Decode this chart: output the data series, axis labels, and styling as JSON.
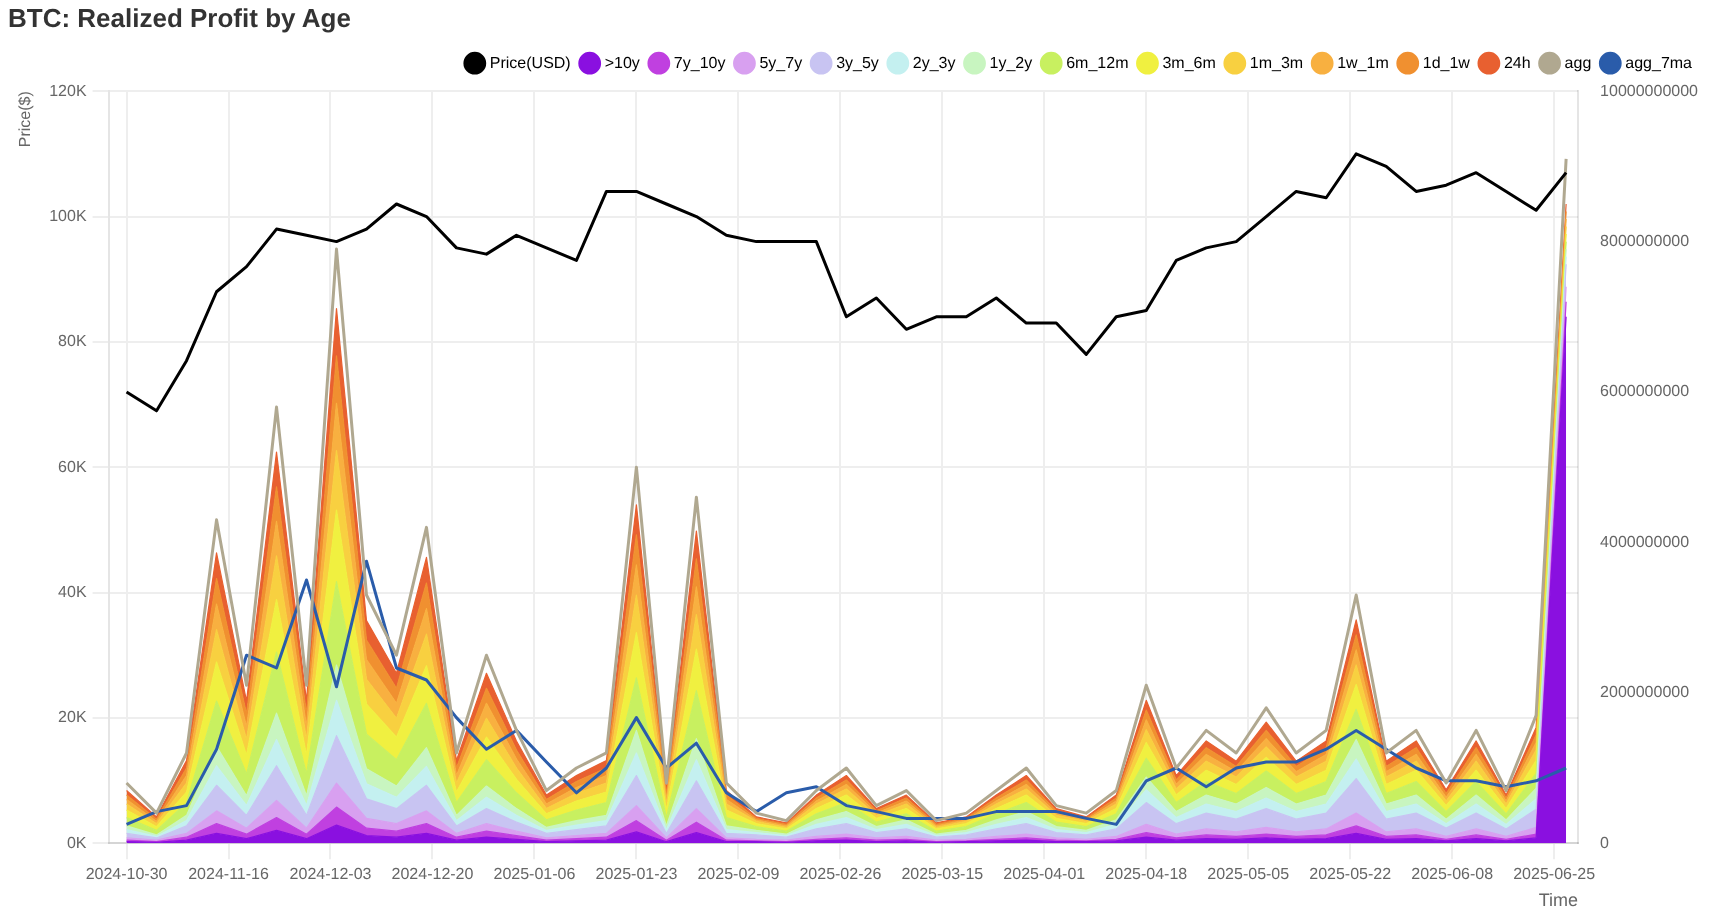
{
  "chart_data": {
    "type": "area",
    "title": "BTC: Realized Profit by Age",
    "ylabel": "Price($)",
    "xlabel": "Time",
    "stacked": true,
    "grid": true,
    "legend": "top right",
    "x": [
      "2024-10-30",
      "2024-11-04",
      "2024-11-09",
      "2024-11-14",
      "2024-11-19",
      "2024-11-24",
      "2024-11-29",
      "2024-12-04",
      "2024-12-09",
      "2024-12-14",
      "2024-12-19",
      "2024-12-24",
      "2024-12-29",
      "2025-01-03",
      "2025-01-08",
      "2025-01-13",
      "2025-01-18",
      "2025-01-23",
      "2025-01-28",
      "2025-02-02",
      "2025-02-07",
      "2025-02-12",
      "2025-02-17",
      "2025-02-22",
      "2025-02-27",
      "2025-03-04",
      "2025-03-09",
      "2025-03-14",
      "2025-03-19",
      "2025-03-24",
      "2025-03-29",
      "2025-04-03",
      "2025-04-08",
      "2025-04-13",
      "2025-04-18",
      "2025-04-23",
      "2025-04-28",
      "2025-05-03",
      "2025-05-08",
      "2025-05-13",
      "2025-05-18",
      "2025-05-23",
      "2025-05-28",
      "2025-06-02",
      "2025-06-07",
      "2025-06-12",
      "2025-06-17",
      "2025-06-22",
      "2025-06-27"
    ],
    "xlim": [
      "2024-10-27",
      "2025-06-29"
    ],
    "xticks": [
      "2024-10-30",
      "2024-11-16",
      "2024-12-03",
      "2024-12-20",
      "2025-01-06",
      "2025-01-23",
      "2025-02-09",
      "2025-02-26",
      "2025-03-15",
      "2025-04-01",
      "2025-04-18",
      "2025-05-05",
      "2025-05-22",
      "2025-06-08",
      "2025-06-25"
    ],
    "ylim": [
      0,
      120000
    ],
    "yticks": [
      {
        "value": 0,
        "label": "0K"
      },
      {
        "value": 20000,
        "label": "20K"
      },
      {
        "value": 40000,
        "label": "40K"
      },
      {
        "value": 60000,
        "label": "60K"
      },
      {
        "value": 80000,
        "label": "80K"
      },
      {
        "value": 100000,
        "label": "100K"
      },
      {
        "value": 120000,
        "label": "120K"
      }
    ],
    "y2lim": [
      0,
      10000000000
    ],
    "y2ticks": [
      0,
      2000000000,
      4000000000,
      6000000000,
      8000000000,
      10000000000
    ],
    "series": [
      {
        "name": "Price(USD)",
        "type": "line",
        "color": "#000000",
        "values": [
          72000,
          69000,
          77000,
          88000,
          92000,
          98000,
          97000,
          96000,
          98000,
          102000,
          100000,
          95000,
          94000,
          97000,
          95000,
          93000,
          104000,
          104000,
          102000,
          100000,
          97000,
          96000,
          96000,
          96000,
          84000,
          87000,
          82000,
          84000,
          84000,
          87000,
          83000,
          83000,
          78000,
          84000,
          85000,
          93000,
          95000,
          96000,
          100000,
          104000,
          103000,
          110000,
          108000,
          104000,
          105000,
          107000,
          104000,
          101000,
          107000
        ]
      },
      {
        "name": ">10y",
        "type": "area",
        "axis": "y2",
        "color": "#8a10e0",
        "values": [
          20000000.0,
          10000000.0,
          40000000.0,
          130000000.0,
          60000000.0,
          170000000.0,
          60000000.0,
          240000000.0,
          100000000.0,
          80000000.0,
          130000000.0,
          40000000.0,
          80000000.0,
          50000000.0,
          20000000.0,
          30000000.0,
          40000000.0,
          150000000.0,
          20000000.0,
          140000000.0,
          20000000.0,
          20000000.0,
          10000000.0,
          30000000.0,
          40000000.0,
          20000000.0,
          30000000.0,
          10000000.0,
          20000000.0,
          30000000.0,
          40000000.0,
          20000000.0,
          20000000.0,
          30000000.0,
          80000000.0,
          40000000.0,
          60000000.0,
          50000000.0,
          70000000.0,
          50000000.0,
          60000000.0,
          130000000.0,
          50000000.0,
          60000000.0,
          30000000.0,
          60000000.0,
          30000000.0,
          70000000.0,
          7000000000.0
        ]
      },
      {
        "name": "7y_10y",
        "type": "area",
        "axis": "y2",
        "color": "#c040e0",
        "values": [
          20000000.0,
          10000000.0,
          40000000.0,
          130000000.0,
          60000000.0,
          170000000.0,
          60000000.0,
          240000000.0,
          100000000.0,
          80000000.0,
          130000000.0,
          40000000.0,
          80000000.0,
          50000000.0,
          20000000.0,
          30000000.0,
          40000000.0,
          150000000.0,
          20000000.0,
          140000000.0,
          20000000.0,
          10000000.0,
          10000000.0,
          20000000.0,
          30000000.0,
          20000000.0,
          20000000.0,
          10000000.0,
          10000000.0,
          20000000.0,
          30000000.0,
          20000000.0,
          10000000.0,
          20000000.0,
          60000000.0,
          30000000.0,
          50000000.0,
          40000000.0,
          50000000.0,
          40000000.0,
          50000000.0,
          100000000.0,
          40000000.0,
          50000000.0,
          20000000.0,
          50000000.0,
          20000000.0,
          50000000.0,
          200000000.0
        ]
      },
      {
        "name": "5y_7y",
        "type": "area",
        "axis": "y2",
        "color": "#d8a0f0",
        "values": [
          30000000.0,
          20000000.0,
          50000000.0,
          170000000.0,
          80000000.0,
          230000000.0,
          80000000.0,
          320000000.0,
          130000000.0,
          100000000.0,
          170000000.0,
          50000000.0,
          100000000.0,
          60000000.0,
          30000000.0,
          40000000.0,
          50000000.0,
          200000000.0,
          30000000.0,
          180000000.0,
          30000000.0,
          20000000.0,
          20000000.0,
          40000000.0,
          50000000.0,
          30000000.0,
          40000000.0,
          20000000.0,
          20000000.0,
          40000000.0,
          50000000.0,
          30000000.0,
          20000000.0,
          40000000.0,
          110000000.0,
          50000000.0,
          80000000.0,
          60000000.0,
          90000000.0,
          60000000.0,
          80000000.0,
          170000000.0,
          60000000.0,
          80000000.0,
          40000000.0,
          80000000.0,
          40000000.0,
          90000000.0,
          200000000.0
        ]
      },
      {
        "name": "3y_5y",
        "type": "area",
        "axis": "y2",
        "color": "#c8c4f2",
        "values": [
          60000000.0,
          30000000.0,
          100000000.0,
          340000000.0,
          170000000.0,
          460000000.0,
          170000000.0,
          630000000.0,
          260000000.0,
          200000000.0,
          340000000.0,
          100000000.0,
          200000000.0,
          120000000.0,
          60000000.0,
          80000000.0,
          100000000.0,
          400000000.0,
          60000000.0,
          370000000.0,
          60000000.0,
          60000000.0,
          40000000.0,
          100000000.0,
          140000000.0,
          70000000.0,
          100000000.0,
          40000000.0,
          60000000.0,
          100000000.0,
          140000000.0,
          70000000.0,
          60000000.0,
          100000000.0,
          290000000.0,
          140000000.0,
          210000000.0,
          170000000.0,
          250000000.0,
          170000000.0,
          210000000.0,
          460000000.0,
          170000000.0,
          210000000.0,
          110000000.0,
          210000000.0,
          100000000.0,
          240000000.0,
          300000000.0
        ]
      },
      {
        "name": "2y_3y",
        "type": "area",
        "axis": "y2",
        "color": "#c4f0f0",
        "values": [
          50000000.0,
          20000000.0,
          70000000.0,
          260000000.0,
          130000000.0,
          350000000.0,
          130000000.0,
          470000000.0,
          200000000.0,
          150000000.0,
          250000000.0,
          70000000.0,
          150000000.0,
          90000000.0,
          40000000.0,
          60000000.0,
          70000000.0,
          300000000.0,
          50000000.0,
          280000000.0,
          50000000.0,
          30000000.0,
          20000000.0,
          60000000.0,
          80000000.0,
          40000000.0,
          60000000.0,
          20000000.0,
          30000000.0,
          60000000.0,
          80000000.0,
          40000000.0,
          30000000.0,
          60000000.0,
          170000000.0,
          80000000.0,
          120000000.0,
          100000000.0,
          140000000.0,
          100000000.0,
          120000000.0,
          260000000.0,
          100000000.0,
          120000000.0,
          60000000.0,
          120000000.0,
          60000000.0,
          140000000.0,
          100000000.0
        ]
      },
      {
        "name": "1y_2y",
        "type": "area",
        "axis": "y2",
        "color": "#c8f5c0",
        "values": [
          50000000.0,
          20000000.0,
          70000000.0,
          260000000.0,
          130000000.0,
          350000000.0,
          130000000.0,
          470000000.0,
          200000000.0,
          150000000.0,
          250000000.0,
          70000000.0,
          150000000.0,
          90000000.0,
          40000000.0,
          60000000.0,
          70000000.0,
          300000000.0,
          50000000.0,
          280000000.0,
          50000000.0,
          30000000.0,
          20000000.0,
          60000000.0,
          80000000.0,
          40000000.0,
          60000000.0,
          20000000.0,
          30000000.0,
          60000000.0,
          80000000.0,
          40000000.0,
          30000000.0,
          60000000.0,
          170000000.0,
          80000000.0,
          120000000.0,
          100000000.0,
          140000000.0,
          100000000.0,
          120000000.0,
          260000000.0,
          100000000.0,
          120000000.0,
          60000000.0,
          120000000.0,
          60000000.0,
          140000000.0,
          100000000.0
        ]
      },
      {
        "name": "6m_12m",
        "type": "area",
        "axis": "y2",
        "color": "#c8f060",
        "values": [
          110000000.0,
          60000000.0,
          170000000.0,
          600000000.0,
          290000000.0,
          810000000.0,
          290000000.0,
          1110000000.0,
          460000000.0,
          350000000.0,
          590000000.0,
          170000000.0,
          350000000.0,
          210000000.0,
          100000000.0,
          140000000.0,
          170000000.0,
          700000000.0,
          110000000.0,
          640000000.0,
          110000000.0,
          50000000.0,
          40000000.0,
          80000000.0,
          120000000.0,
          60000000.0,
          80000000.0,
          40000000.0,
          50000000.0,
          80000000.0,
          120000000.0,
          60000000.0,
          50000000.0,
          80000000.0,
          250000000.0,
          120000000.0,
          180000000.0,
          140000000.0,
          220000000.0,
          140000000.0,
          180000000.0,
          400000000.0,
          140000000.0,
          180000000.0,
          100000000.0,
          180000000.0,
          80000000.0,
          200000000.0,
          100000000.0
        ]
      },
      {
        "name": "3m_6m",
        "type": "area",
        "axis": "y2",
        "color": "#f0f040",
        "values": [
          100000000.0,
          50000000.0,
          140000000.0,
          520000000.0,
          250000000.0,
          700000000.0,
          250000000.0,
          950000000.0,
          400000000.0,
          300000000.0,
          500000000.0,
          140000000.0,
          300000000.0,
          180000000.0,
          80000000.0,
          120000000.0,
          140000000.0,
          600000000.0,
          100000000.0,
          550000000.0,
          100000000.0,
          40000000.0,
          30000000.0,
          70000000.0,
          100000000.0,
          50000000.0,
          70000000.0,
          30000000.0,
          40000000.0,
          70000000.0,
          100000000.0,
          50000000.0,
          40000000.0,
          70000000.0,
          210000000.0,
          100000000.0,
          150000000.0,
          120000000.0,
          180000000.0,
          120000000.0,
          150000000.0,
          330000000.0,
          120000000.0,
          150000000.0,
          80000000.0,
          150000000.0,
          70000000.0,
          170000000.0,
          100000000.0
        ]
      },
      {
        "name": "1m_3m",
        "type": "area",
        "axis": "y2",
        "color": "#f8d040",
        "values": [
          80000000.0,
          40000000.0,
          120000000.0,
          430000000.0,
          210000000.0,
          580000000.0,
          210000000.0,
          790000000.0,
          330000000.0,
          250000000.0,
          420000000.0,
          120000000.0,
          250000000.0,
          150000000.0,
          70000000.0,
          100000000.0,
          120000000.0,
          500000000.0,
          80000000.0,
          460000000.0,
          80000000.0,
          30000000.0,
          20000000.0,
          60000000.0,
          80000000.0,
          40000000.0,
          60000000.0,
          20000000.0,
          30000000.0,
          60000000.0,
          80000000.0,
          40000000.0,
          30000000.0,
          60000000.0,
          170000000.0,
          80000000.0,
          120000000.0,
          100000000.0,
          140000000.0,
          100000000.0,
          120000000.0,
          260000000.0,
          100000000.0,
          120000000.0,
          60000000.0,
          120000000.0,
          60000000.0,
          140000000.0,
          100000000.0
        ]
      },
      {
        "name": "1w_1m",
        "type": "area",
        "axis": "y2",
        "color": "#f8b040",
        "values": [
          60000000.0,
          30000000.0,
          100000000.0,
          340000000.0,
          170000000.0,
          460000000.0,
          170000000.0,
          630000000.0,
          260000000.0,
          200000000.0,
          340000000.0,
          100000000.0,
          200000000.0,
          120000000.0,
          60000000.0,
          80000000.0,
          100000000.0,
          400000000.0,
          60000000.0,
          370000000.0,
          60000000.0,
          20000000.0,
          20000000.0,
          40000000.0,
          60000000.0,
          30000000.0,
          40000000.0,
          20000000.0,
          20000000.0,
          40000000.0,
          60000000.0,
          30000000.0,
          20000000.0,
          40000000.0,
          130000000.0,
          60000000.0,
          90000000.0,
          70000000.0,
          110000000.0,
          70000000.0,
          90000000.0,
          200000000.0,
          70000000.0,
          90000000.0,
          50000000.0,
          90000000.0,
          40000000.0,
          100000000.0,
          100000000.0
        ]
      },
      {
        "name": "1d_1w",
        "type": "area",
        "axis": "y2",
        "color": "#f09030",
        "values": [
          60000000.0,
          30000000.0,
          100000000.0,
          340000000.0,
          170000000.0,
          460000000.0,
          170000000.0,
          630000000.0,
          260000000.0,
          200000000.0,
          340000000.0,
          100000000.0,
          200000000.0,
          120000000.0,
          60000000.0,
          80000000.0,
          100000000.0,
          400000000.0,
          60000000.0,
          370000000.0,
          60000000.0,
          20000000.0,
          20000000.0,
          40000000.0,
          60000000.0,
          30000000.0,
          40000000.0,
          20000000.0,
          20000000.0,
          40000000.0,
          60000000.0,
          30000000.0,
          20000000.0,
          40000000.0,
          130000000.0,
          60000000.0,
          90000000.0,
          70000000.0,
          110000000.0,
          70000000.0,
          90000000.0,
          200000000.0,
          70000000.0,
          90000000.0,
          50000000.0,
          90000000.0,
          40000000.0,
          100000000.0,
          100000000.0
        ]
      },
      {
        "name": "24h",
        "type": "area",
        "axis": "y2",
        "color": "#e86030",
        "values": [
          60000000.0,
          30000000.0,
          100000000.0,
          340000000.0,
          170000000.0,
          460000000.0,
          170000000.0,
          630000000.0,
          260000000.0,
          200000000.0,
          340000000.0,
          100000000.0,
          200000000.0,
          120000000.0,
          60000000.0,
          80000000.0,
          100000000.0,
          400000000.0,
          60000000.0,
          370000000.0,
          60000000.0,
          20000000.0,
          20000000.0,
          40000000.0,
          60000000.0,
          30000000.0,
          40000000.0,
          20000000.0,
          20000000.0,
          40000000.0,
          60000000.0,
          30000000.0,
          20000000.0,
          40000000.0,
          130000000.0,
          60000000.0,
          90000000.0,
          70000000.0,
          110000000.0,
          70000000.0,
          90000000.0,
          200000000.0,
          70000000.0,
          90000000.0,
          50000000.0,
          90000000.0,
          40000000.0,
          100000000.0,
          100000000.0
        ]
      },
      {
        "name": "agg",
        "type": "line",
        "axis": "y2",
        "color": "#b0a890",
        "values": [
          800000000.0,
          400000000.0,
          1200000000.0,
          4300000000.0,
          2100000000.0,
          5800000000.0,
          2100000000.0,
          7900000000.0,
          3300000000.0,
          2500000000.0,
          4200000000.0,
          1200000000.0,
          2500000000.0,
          1500000000.0,
          700000000.0,
          1000000000.0,
          1200000000.0,
          5000000000.0,
          800000000.0,
          4600000000.0,
          800000000.0,
          400000000.0,
          300000000.0,
          700000000.0,
          1000000000.0,
          500000000.0,
          700000000.0,
          300000000.0,
          400000000.0,
          700000000.0,
          1000000000.0,
          500000000.0,
          400000000.0,
          700000000.0,
          2100000000.0,
          1000000000.0,
          1500000000.0,
          1200000000.0,
          1800000000.0,
          1200000000.0,
          1500000000.0,
          3300000000.0,
          1200000000.0,
          1500000000.0,
          800000000.0,
          1500000000.0,
          700000000.0,
          1700000000.0,
          9100000000.0
        ]
      },
      {
        "name": "agg_7ma",
        "type": "line",
        "axis": "y2",
        "color": "#2a5caa",
        "values": [
          250000000.0,
          420000000.0,
          500000000.0,
          1250000000.0,
          2500000000.0,
          2330000000.0,
          3500000000.0,
          2080000000.0,
          3750000000.0,
          2330000000.0,
          2170000000.0,
          1670000000.0,
          1250000000.0,
          1500000000.0,
          1080000000.0,
          670000000.0,
          1000000000.0,
          1670000000.0,
          1000000000.0,
          1330000000.0,
          670000000.0,
          420000000.0,
          670000000.0,
          750000000.0,
          500000000.0,
          420000000.0,
          330000000.0,
          330000000.0,
          330000000.0,
          420000000.0,
          420000000.0,
          420000000.0,
          330000000.0,
          250000000.0,
          830000000.0,
          1000000000.0,
          750000000.0,
          1000000000.0,
          1080000000.0,
          1080000000.0,
          1250000000.0,
          1500000000.0,
          1250000000.0,
          1000000000.0,
          830000000.0,
          830000000.0,
          750000000.0,
          830000000.0,
          1000000000.0
        ]
      }
    ]
  }
}
